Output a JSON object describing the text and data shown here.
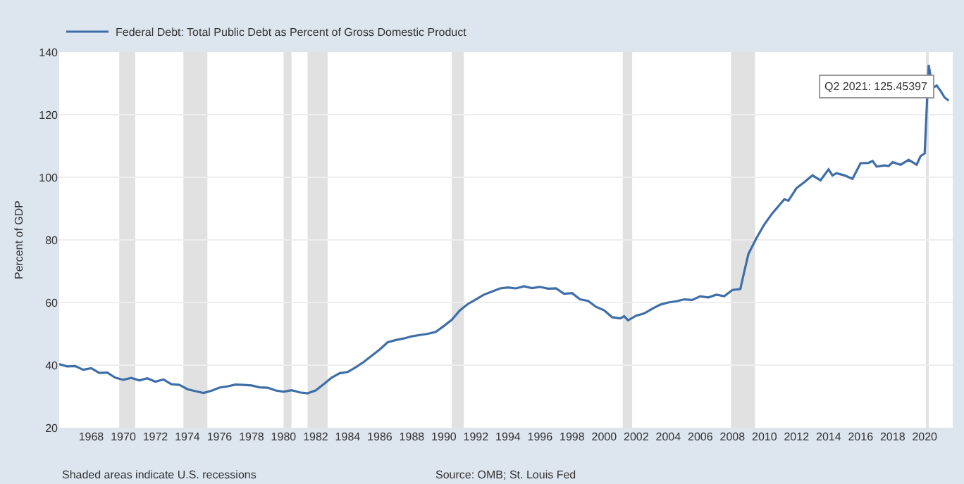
{
  "chart_data": {
    "type": "line",
    "ylabel": "Percent of GDP",
    "series": [
      {
        "name": "Federal Debt: Total Public Debt as Percent of Gross Domestic Product",
        "color": "#3e6ea8",
        "x": [
          "1966-01",
          "1966-07",
          "1967-01",
          "1967-07",
          "1968-01",
          "1968-07",
          "1969-01",
          "1969-07",
          "1970-01",
          "1970-07",
          "1971-01",
          "1971-07",
          "1972-01",
          "1972-07",
          "1973-01",
          "1973-07",
          "1974-01",
          "1974-07",
          "1975-01",
          "1975-07",
          "1976-01",
          "1976-07",
          "1977-01",
          "1977-07",
          "1978-01",
          "1978-07",
          "1979-01",
          "1979-07",
          "1980-01",
          "1980-07",
          "1981-01",
          "1981-07",
          "1982-01",
          "1982-07",
          "1983-01",
          "1983-07",
          "1984-01",
          "1984-07",
          "1985-01",
          "1985-07",
          "1986-01",
          "1986-07",
          "1987-01",
          "1987-07",
          "1988-01",
          "1988-07",
          "1989-01",
          "1989-07",
          "1990-01",
          "1990-07",
          "1991-01",
          "1991-07",
          "1992-01",
          "1992-07",
          "1993-01",
          "1993-07",
          "1994-01",
          "1994-07",
          "1995-01",
          "1995-07",
          "1996-01",
          "1996-07",
          "1997-01",
          "1997-07",
          "1998-01",
          "1998-07",
          "1999-01",
          "1999-07",
          "2000-01",
          "2000-07",
          "2001-01",
          "2001-04",
          "2001-07",
          "2002-01",
          "2002-07",
          "2003-01",
          "2003-07",
          "2004-01",
          "2004-07",
          "2005-01",
          "2005-07",
          "2006-01",
          "2006-07",
          "2007-01",
          "2007-07",
          "2008-01",
          "2008-07",
          "2008-10",
          "2009-01",
          "2009-07",
          "2010-01",
          "2010-07",
          "2011-01",
          "2011-04",
          "2011-07",
          "2012-01",
          "2012-07",
          "2013-01",
          "2013-07",
          "2014-01",
          "2014-04",
          "2014-07",
          "2015-01",
          "2015-07",
          "2016-01",
          "2016-07",
          "2016-10",
          "2017-01",
          "2017-07",
          "2017-10",
          "2018-01",
          "2018-07",
          "2019-01",
          "2019-07",
          "2019-10",
          "2020-01",
          "2020-04",
          "2020-07",
          "2020-10",
          "2021-01",
          "2021-04",
          "2021-07"
        ],
        "values": [
          40.3,
          39.6,
          39.7,
          38.5,
          39.0,
          37.5,
          37.6,
          36.0,
          35.3,
          35.9,
          35.1,
          35.8,
          34.7,
          35.4,
          33.9,
          33.7,
          32.3,
          31.7,
          31.1,
          31.8,
          32.8,
          33.2,
          33.8,
          33.7,
          33.5,
          32.9,
          32.8,
          31.9,
          31.5,
          32.0,
          31.3,
          31.0,
          31.9,
          33.9,
          36.0,
          37.4,
          37.8,
          39.3,
          41.0,
          43.0,
          45.0,
          47.3,
          48.0,
          48.5,
          49.2,
          49.6,
          50.0,
          50.6,
          52.5,
          54.5,
          57.5,
          59.5,
          61.0,
          62.5,
          63.5,
          64.5,
          64.8,
          64.5,
          65.2,
          64.6,
          65.0,
          64.4,
          64.5,
          62.8,
          63.0,
          61.0,
          60.5,
          58.6,
          57.5,
          55.3,
          54.9,
          55.6,
          54.3,
          55.8,
          56.5,
          58.0,
          59.3,
          60.0,
          60.4,
          61.0,
          60.8,
          62.0,
          61.6,
          62.5,
          62.0,
          64.0,
          64.3,
          70.0,
          75.5,
          80.5,
          85.0,
          88.5,
          91.5,
          93.0,
          92.5,
          96.5,
          98.5,
          100.6,
          99.0,
          102.5,
          100.6,
          101.3,
          100.6,
          99.5,
          104.5,
          104.6,
          105.2,
          103.4,
          103.8,
          103.6,
          104.8,
          104.0,
          105.6,
          104.0,
          106.8,
          107.6,
          135.9,
          128.5,
          129.3,
          127.5,
          125.45397,
          124.5
        ]
      }
    ],
    "xlim": [
      "1966-01",
      "2021-10"
    ],
    "xticks": [
      {
        "value": "1968",
        "label": "1968"
      },
      {
        "value": "1970",
        "label": "1970"
      },
      {
        "value": "1972",
        "label": "1972"
      },
      {
        "value": "1974",
        "label": "1974"
      },
      {
        "value": "1976",
        "label": "1976"
      },
      {
        "value": "1978",
        "label": "1978"
      },
      {
        "value": "1980",
        "label": "1980"
      },
      {
        "value": "1982",
        "label": "1982"
      },
      {
        "value": "1984",
        "label": "1984"
      },
      {
        "value": "1986",
        "label": "1986"
      },
      {
        "value": "1988",
        "label": "1988"
      },
      {
        "value": "1990",
        "label": "1990"
      },
      {
        "value": "1992",
        "label": "1992"
      },
      {
        "value": "1994",
        "label": "1994"
      },
      {
        "value": "1996",
        "label": "1996"
      },
      {
        "value": "1998",
        "label": "1998"
      },
      {
        "value": "2000",
        "label": "2000"
      },
      {
        "value": "2002",
        "label": "2002"
      },
      {
        "value": "2004",
        "label": "2004"
      },
      {
        "value": "2006",
        "label": "2006"
      },
      {
        "value": "2008",
        "label": "2008"
      },
      {
        "value": "2010",
        "label": "2010"
      },
      {
        "value": "2012",
        "label": "2012"
      },
      {
        "value": "2014",
        "label": "2014"
      },
      {
        "value": "2016",
        "label": "2016"
      },
      {
        "value": "2018",
        "label": "2018"
      },
      {
        "value": "2020",
        "label": "2020"
      }
    ],
    "ylim": [
      20,
      140
    ],
    "yticks": [
      20,
      40,
      60,
      80,
      100,
      120,
      140
    ],
    "grid": "y",
    "legend": "top left",
    "bands": [
      {
        "axis": "x",
        "from": "1969-10",
        "to": "1970-10",
        "color": "#e1e1e1"
      },
      {
        "axis": "x",
        "from": "1973-10",
        "to": "1975-04",
        "color": "#e1e1e1"
      },
      {
        "axis": "x",
        "from": "1980-01",
        "to": "1980-07",
        "color": "#e1e1e1"
      },
      {
        "axis": "x",
        "from": "1981-07",
        "to": "1982-10",
        "color": "#e1e1e1"
      },
      {
        "axis": "x",
        "from": "1990-07",
        "to": "1991-04",
        "color": "#e1e1e1"
      },
      {
        "axis": "x",
        "from": "2001-03",
        "to": "2001-10",
        "color": "#e1e1e1"
      },
      {
        "axis": "x",
        "from": "2007-12",
        "to": "2009-06",
        "color": "#e1e1e1"
      },
      {
        "axis": "x",
        "from": "2020-02",
        "to": "2020-04",
        "color": "#e1e1e1"
      }
    ],
    "annotations": [
      {
        "text": "Q2 2021: 125.45397",
        "x": "2021-04",
        "y": 125.45397
      },
      "Shaded areas indicate U.S. recessions",
      "Source: OMB; St. Louis Fed"
    ]
  }
}
